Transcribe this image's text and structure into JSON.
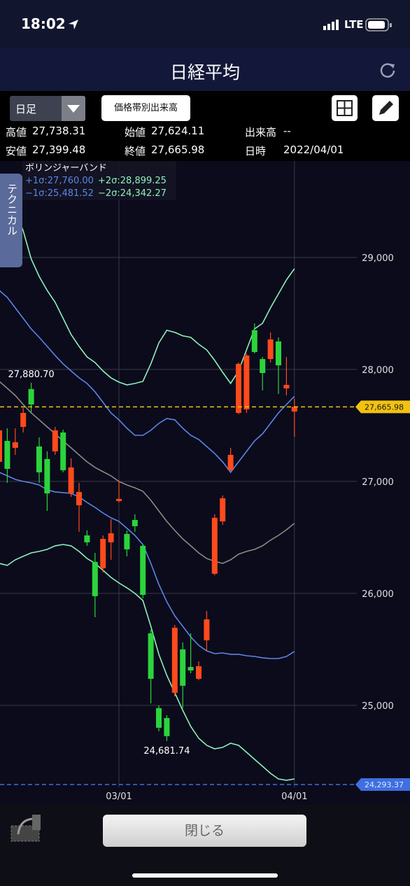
{
  "status_bar": {
    "time": "18:02",
    "network": "LTE"
  },
  "nav": {
    "title": "日経平均"
  },
  "toolbar": {
    "period": "日足",
    "volume_profile": "価格帯別出来高"
  },
  "info": [
    [
      {
        "label": "高値",
        "value": "27,738.31"
      },
      {
        "label": "始値",
        "value": "27,624.11"
      },
      {
        "label": "出来高",
        "value": "--"
      }
    ],
    [
      {
        "label": "安値",
        "value": "27,399.48"
      },
      {
        "label": "終値",
        "value": "27,665.98"
      },
      {
        "label": "日時",
        "value": "2022/04/01"
      }
    ]
  ],
  "side_tab": "テクニカル",
  "footer": {
    "close": "閉じる"
  },
  "chart_data": {
    "type": "candlestick",
    "legend_title": "ボリンジャーバンド",
    "categories": [
      null,
      null,
      null,
      null,
      null,
      null,
      null,
      null,
      null,
      null,
      null,
      null,
      null,
      null,
      null,
      "03/01",
      null,
      null,
      null,
      null,
      null,
      null,
      null,
      null,
      null,
      null,
      null,
      null,
      null,
      null,
      null,
      null,
      null,
      null,
      null,
      null,
      null,
      "04/01"
    ],
    "open": [
      27175,
      27362,
      27300,
      27487,
      27825,
      27312,
      27200,
      27268,
      27437,
      26893,
      26787,
      26518,
      26281,
      26225,
      26456,
      26825,
      26531,
      26656,
      26425,
      25643,
      24975,
      24887,
      25112,
      25500,
      25343,
      25237,
      25581,
      26175,
      26643,
      27100,
      27612,
      27643,
      28350,
      28093,
      28093,
      28250,
      27831,
      27624.11
    ],
    "high": [
      27550,
      27475,
      27475,
      27656,
      27880.7,
      27393,
      27268,
      27487,
      27462,
      27206,
      26987,
      26562,
      26362,
      26518,
      26662,
      27000,
      26562,
      26706,
      26437,
      25675,
      25000,
      24912,
      25718,
      25562,
      25643,
      25393,
      25843,
      26706,
      26875,
      27300,
      28062,
      28143,
      28412,
      28112,
      28331,
      28287,
      28112,
      27738.31
    ],
    "low": [
      27080,
      26987,
      27237,
      27437,
      27612,
      26987,
      26737,
      27237,
      27081,
      26862,
      26550,
      26425,
      25787,
      26187,
      26300,
      26812,
      26331,
      26550,
      25956,
      25018,
      24768,
      24681.74,
      25081,
      24975,
      25287,
      25225,
      25487,
      26162,
      26612,
      27093,
      27600,
      27612,
      28143,
      27812,
      28062,
      27781,
      27768,
      27399.48
    ],
    "close": [
      27456,
      27112,
      27350,
      27612,
      27687,
      27081,
      26893,
      27456,
      27100,
      27125,
      26906,
      26456,
      25975,
      26487,
      26537,
      26844,
      26393,
      26600,
      25987,
      25237,
      24800,
      24725,
      25693,
      25175,
      25312,
      25350,
      25768,
      26675,
      26850,
      27237,
      28050,
      28125,
      28156,
      27968,
      28268,
      28037,
      27862,
      27665.98
    ],
    "high_labels": [
      null,
      null,
      null,
      null,
      "27,880.70",
      null,
      null,
      null,
      null,
      null,
      null,
      null,
      null,
      null,
      null,
      null,
      null,
      null,
      null,
      null,
      null,
      null,
      null,
      null,
      null,
      null,
      null,
      null,
      null,
      null,
      null,
      null,
      null,
      null,
      null,
      null,
      null,
      null
    ],
    "low_labels": [
      null,
      null,
      null,
      null,
      null,
      null,
      null,
      null,
      null,
      null,
      null,
      null,
      null,
      null,
      null,
      null,
      null,
      null,
      null,
      null,
      null,
      "24,681.74",
      null,
      null,
      null,
      null,
      null,
      null,
      null,
      null,
      null,
      null,
      null,
      null,
      null,
      null,
      null,
      null
    ],
    "up_color": "#ff4a1c",
    "down_color": "#2bd43c",
    "series": [
      {
        "name": "+1σ:27,760.00",
        "color": "#5b86e5",
        "values": [
          28706,
          28644,
          28550,
          28456,
          28362,
          28287,
          28206,
          28125,
          28050,
          27987,
          27925,
          27875,
          27800,
          27706,
          27612,
          27550,
          27475,
          27412,
          27412,
          27456,
          27518,
          27562,
          27550,
          27475,
          27412,
          27375,
          27312,
          27250,
          27175,
          27081,
          27175,
          27268,
          27362,
          27425,
          27518,
          27612,
          27687,
          27760.0
        ]
      },
      {
        "name": "+2σ:28,899.25",
        "color": "#8ff0b8",
        "values": [
          29612,
          29519,
          29425,
          29237,
          28987,
          28831,
          28706,
          28600,
          28456,
          28312,
          28206,
          28112,
          28062,
          27987,
          27925,
          27887,
          27862,
          27875,
          27893,
          28050,
          28237,
          28350,
          28331,
          28300,
          28287,
          28225,
          28175,
          28081,
          27975,
          27875,
          27987,
          28175,
          28362,
          28412,
          28550,
          28675,
          28800,
          28899.25
        ]
      },
      {
        "name": "−1σ:25,481.52",
        "color": "#5b86e5",
        "values": [
          27081,
          27050,
          27018,
          27000,
          26987,
          26968,
          26925,
          26906,
          26900,
          26893,
          26862,
          26812,
          26768,
          26718,
          26675,
          26643,
          26581,
          26518,
          26437,
          26268,
          26081,
          25925,
          25800,
          25706,
          25612,
          25537,
          25487,
          25462,
          25468,
          25456,
          25456,
          25443,
          25437,
          25425,
          25418,
          25418,
          25437,
          25481.52
        ]
      },
      {
        "name": "−2σ:24,342.27",
        "color": "#8ff0b8",
        "values": [
          26268,
          26250,
          26300,
          26331,
          26362,
          26375,
          26393,
          26425,
          26437,
          26425,
          26375,
          26312,
          26268,
          26206,
          26143,
          26093,
          26050,
          26000,
          25937,
          25706,
          25456,
          25268,
          25112,
          24956,
          24812,
          24706,
          24643,
          24612,
          24625,
          24662,
          24643,
          24581,
          24518,
          24456,
          24393,
          24343,
          24331,
          24342.27
        ]
      },
      {
        "color": "#8a8a80",
        "values": [
          27893,
          27831,
          27768,
          27687,
          27612,
          27550,
          27487,
          27425,
          27362,
          27300,
          27237,
          27175,
          27125,
          27087,
          27050,
          27000,
          26968,
          26943,
          26912,
          26831,
          26737,
          26643,
          26562,
          26487,
          26425,
          26362,
          26312,
          26287,
          26268,
          26300,
          26350,
          26375,
          26393,
          26425,
          26475,
          26518,
          26568,
          26625
        ]
      }
    ],
    "ylim": [
      24268,
      29862
    ],
    "yticks": [
      {
        "value": 25000,
        "label": "25,000"
      },
      {
        "value": 26000,
        "label": "26,000"
      },
      {
        "value": 27000,
        "label": "27,000"
      },
      {
        "value": 28000,
        "label": "28,000"
      },
      {
        "value": 29000,
        "label": "29,000"
      }
    ],
    "grid": true,
    "price_lines": [
      {
        "value": 27665.98,
        "label": "27,665.98",
        "color": "#f2c20f",
        "text_color": "#1a1a1a"
      },
      {
        "value": 24293.37,
        "label": "24,293.37",
        "color": "#3f6fe0",
        "text_color": "#dfe6ff"
      }
    ]
  }
}
